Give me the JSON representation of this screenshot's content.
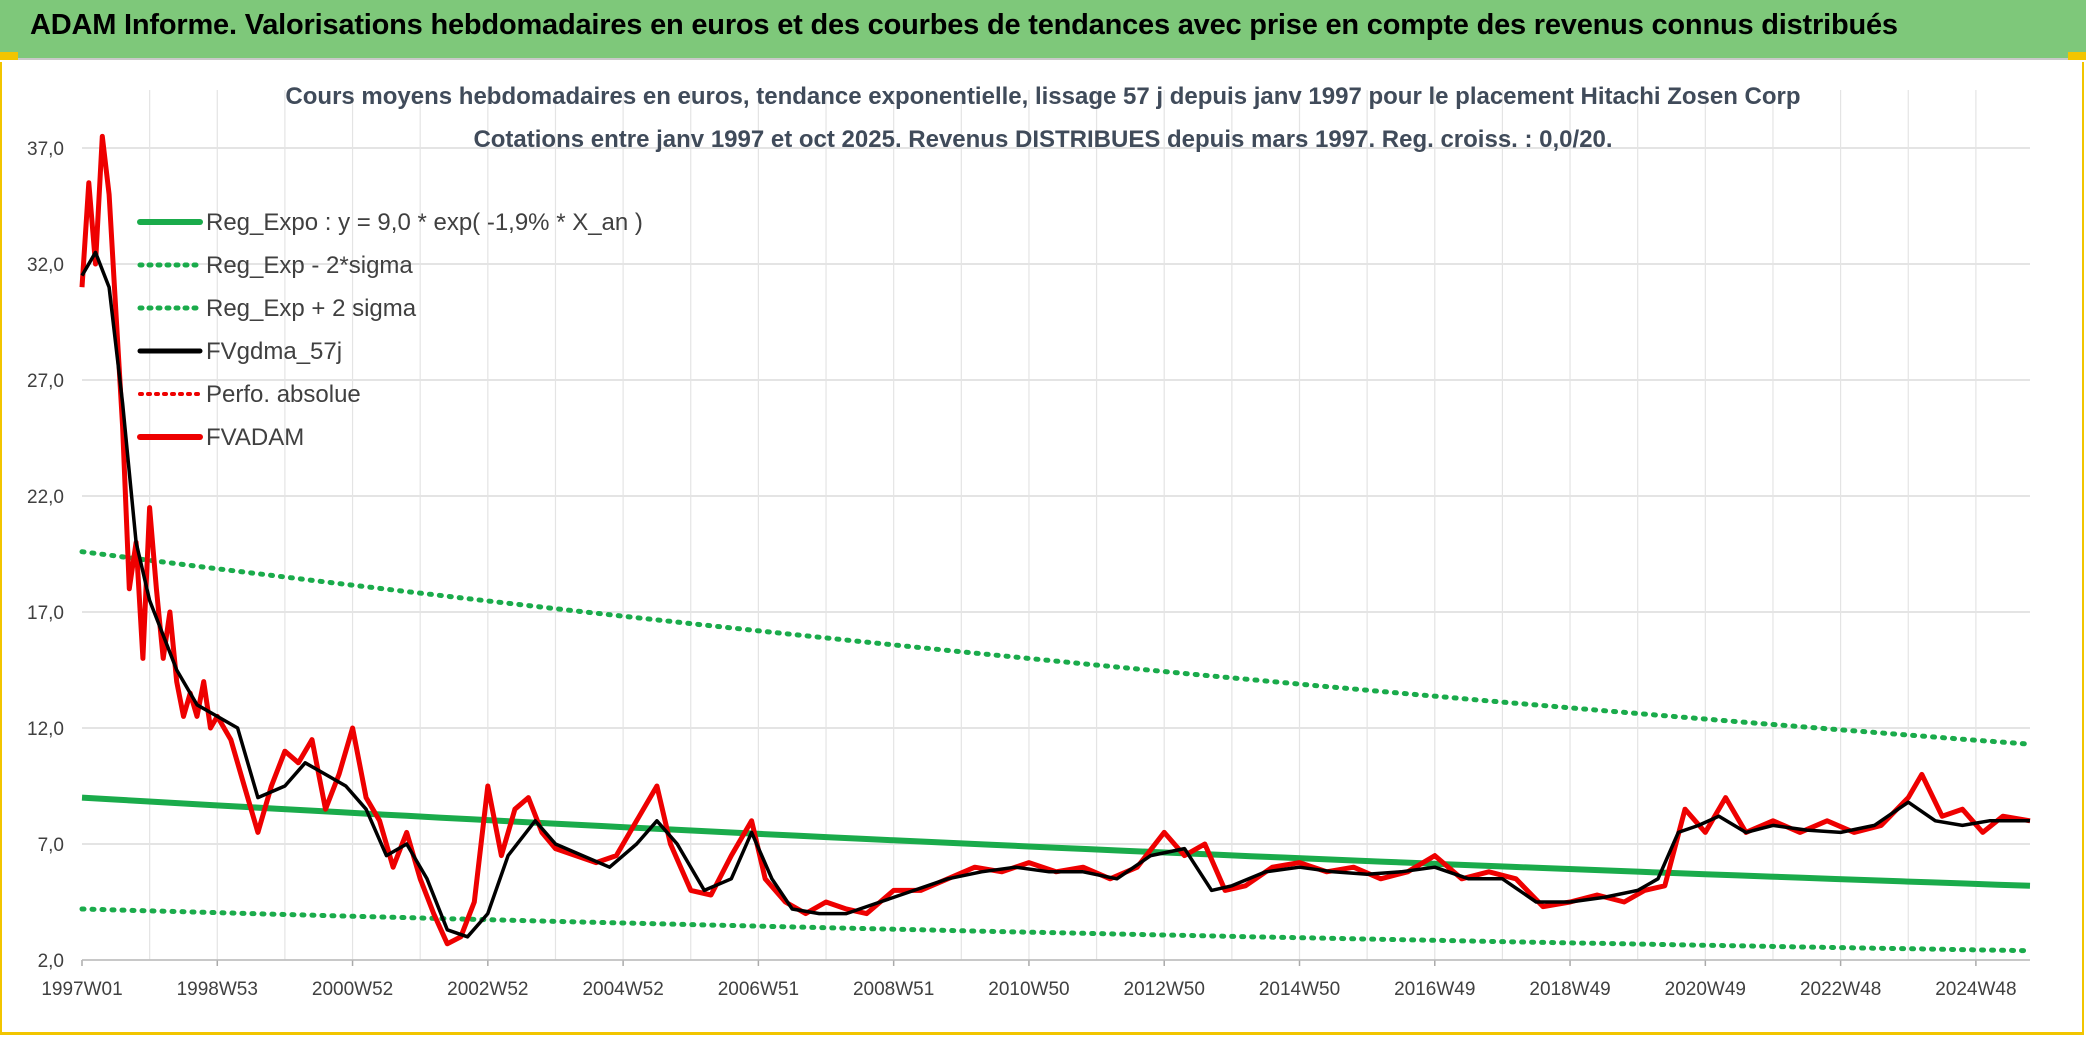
{
  "banner": {
    "title": "ADAM Informe. Valorisations hebdomadaires en euros et des courbes de tendances avec prise en compte des revenus connus distribués"
  },
  "colors": {
    "banner_bg": "#7ec87a",
    "regression": "#1aab4b",
    "fvgdma": "#000000",
    "fvadam": "#ee0000",
    "perfo": "#ee0000",
    "accent_border": "#f2c500"
  },
  "chart_data": {
    "type": "line",
    "title": "Cours moyens hebdomadaires en euros, tendance exponentielle, lissage 57 j depuis janv 1997 pour le placement Hitachi Zosen Corp",
    "subtitle": "Cotations entre janv 1997 et oct 2025. Revenus DISTRIBUES depuis mars 1997. Reg. croiss. : 0,0/20.",
    "xlabel": "",
    "ylabel": "",
    "x_range": [
      1997.0,
      2025.8
    ],
    "ylim": [
      2.0,
      39.5
    ],
    "y_ticks": [
      2.0,
      7.0,
      12.0,
      17.0,
      22.0,
      27.0,
      32.0,
      37.0
    ],
    "y_tick_labels": [
      "2,0",
      "7,0",
      "12,0",
      "17,0",
      "22,0",
      "27,0",
      "32,0",
      "37,0"
    ],
    "x_ticks": [
      1997.0,
      1999.0,
      2001.0,
      2003.0,
      2005.0,
      2007.0,
      2009.0,
      2011.0,
      2013.0,
      2015.0,
      2017.0,
      2019.0,
      2021.0,
      2023.0,
      2025.0
    ],
    "x_tick_labels": [
      "1997W01",
      "1998W53",
      "2000W52",
      "2002W52",
      "2004W52",
      "2006W51",
      "2008W51",
      "2010W50",
      "2012W50",
      "2014W50",
      "2016W49",
      "2018W49",
      "2020W49",
      "2022W48",
      "2024W48"
    ],
    "grid": true,
    "legend_position": "top-left",
    "legend": [
      {
        "label": "Reg_Expo : y = 9,0 * exp( -1,9% *  X_an )",
        "style": "solid-green"
      },
      {
        "label": "Reg_Exp - 2*sigma",
        "style": "dotted-green"
      },
      {
        "label": "Reg_Exp + 2 sigma",
        "style": "dotted-green"
      },
      {
        "label": "FVgdma_57j",
        "style": "solid-black"
      },
      {
        "label": "Perfo. absolue",
        "style": "dotted-red"
      },
      {
        "label": "FVADAM",
        "style": "solid-red"
      }
    ],
    "series": [
      {
        "name": "Reg_Expo",
        "x": [
          1997.0,
          2025.8
        ],
        "values": [
          9.0,
          5.2
        ]
      },
      {
        "name": "Reg_Exp - 2*sigma",
        "x": [
          1997.0,
          2025.8
        ],
        "values": [
          4.2,
          2.4
        ]
      },
      {
        "name": "Reg_Exp + 2 sigma",
        "x": [
          1997.0,
          2025.8
        ],
        "values": [
          19.6,
          11.3
        ]
      },
      {
        "name": "FVgdma_57j",
        "x": [
          1997.0,
          1997.2,
          1997.4,
          1997.6,
          1997.8,
          1998.0,
          1998.2,
          1998.4,
          1998.7,
          1999.0,
          1999.3,
          1999.6,
          2000.0,
          2000.3,
          2000.6,
          2000.9,
          2001.2,
          2001.5,
          2001.8,
          2002.1,
          2002.4,
          2002.7,
          2003.0,
          2003.3,
          2003.7,
          2004.0,
          2004.4,
          2004.8,
          2005.2,
          2005.5,
          2005.8,
          2006.2,
          2006.6,
          2006.9,
          2007.2,
          2007.5,
          2007.9,
          2008.3,
          2008.8,
          2009.3,
          2009.8,
          2010.3,
          2010.8,
          2011.3,
          2011.8,
          2012.3,
          2012.8,
          2013.3,
          2013.7,
          2014.0,
          2014.5,
          2015.0,
          2015.5,
          2016.0,
          2016.5,
          2017.0,
          2017.5,
          2018.0,
          2018.5,
          2019.0,
          2019.5,
          2020.0,
          2020.3,
          2020.6,
          2020.9,
          2021.2,
          2021.6,
          2022.0,
          2022.5,
          2023.0,
          2023.5,
          2024.0,
          2024.4,
          2024.8,
          2025.2,
          2025.8
        ],
        "values": [
          31.5,
          32.5,
          31.0,
          26.0,
          20.0,
          17.5,
          16.0,
          14.5,
          13.0,
          12.5,
          12.0,
          9.0,
          9.5,
          10.5,
          10.0,
          9.5,
          8.5,
          6.5,
          7.0,
          5.5,
          3.3,
          3.0,
          4.0,
          6.5,
          8.0,
          7.0,
          6.5,
          6.0,
          7.0,
          8.0,
          7.0,
          5.0,
          5.5,
          7.5,
          5.5,
          4.2,
          4.0,
          4.0,
          4.5,
          5.0,
          5.5,
          5.8,
          6.0,
          5.8,
          5.8,
          5.5,
          6.5,
          6.8,
          5.0,
          5.2,
          5.8,
          6.0,
          5.8,
          5.7,
          5.8,
          6.0,
          5.5,
          5.5,
          4.5,
          4.5,
          4.7,
          5.0,
          5.5,
          7.5,
          7.8,
          8.2,
          7.5,
          7.8,
          7.6,
          7.5,
          7.8,
          8.8,
          8.0,
          7.8,
          8.0,
          8.0
        ]
      },
      {
        "name": "FVADAM",
        "x": [
          1997.0,
          1997.1,
          1997.2,
          1997.3,
          1997.4,
          1997.5,
          1997.6,
          1997.7,
          1997.8,
          1997.9,
          1998.0,
          1998.1,
          1998.2,
          1998.3,
          1998.4,
          1998.5,
          1998.6,
          1998.7,
          1998.8,
          1998.9,
          1999.0,
          1999.2,
          1999.4,
          1999.6,
          1999.8,
          2000.0,
          2000.2,
          2000.4,
          2000.6,
          2000.8,
          2001.0,
          2001.2,
          2001.4,
          2001.6,
          2001.8,
          2002.0,
          2002.2,
          2002.4,
          2002.6,
          2002.8,
          2003.0,
          2003.2,
          2003.4,
          2003.6,
          2003.8,
          2004.0,
          2004.3,
          2004.6,
          2004.9,
          2005.2,
          2005.5,
          2005.7,
          2006.0,
          2006.3,
          2006.6,
          2006.9,
          2007.1,
          2007.4,
          2007.7,
          2008.0,
          2008.3,
          2008.6,
          2009.0,
          2009.4,
          2009.8,
          2010.2,
          2010.6,
          2011.0,
          2011.4,
          2011.8,
          2012.2,
          2012.6,
          2013.0,
          2013.3,
          2013.6,
          2013.9,
          2014.2,
          2014.6,
          2015.0,
          2015.4,
          2015.8,
          2016.2,
          2016.6,
          2017.0,
          2017.4,
          2017.8,
          2018.2,
          2018.6,
          2019.0,
          2019.4,
          2019.8,
          2020.1,
          2020.4,
          2020.7,
          2021.0,
          2021.3,
          2021.6,
          2022.0,
          2022.4,
          2022.8,
          2023.2,
          2023.6,
          2024.0,
          2024.2,
          2024.5,
          2024.8,
          2025.1,
          2025.4,
          2025.8
        ],
        "values": [
          31.0,
          35.5,
          32.0,
          37.5,
          35.0,
          30.0,
          25.0,
          18.0,
          20.0,
          15.0,
          21.5,
          18.0,
          15.0,
          17.0,
          14.0,
          12.5,
          13.5,
          12.5,
          14.0,
          12.0,
          12.5,
          11.5,
          9.5,
          7.5,
          9.5,
          11.0,
          10.5,
          11.5,
          8.5,
          10.0,
          12.0,
          9.0,
          8.0,
          6.0,
          7.5,
          5.5,
          4.0,
          2.7,
          3.0,
          4.5,
          9.5,
          6.5,
          8.5,
          9.0,
          7.5,
          6.8,
          6.5,
          6.2,
          6.5,
          8.0,
          9.5,
          7.0,
          5.0,
          4.8,
          6.5,
          8.0,
          5.5,
          4.5,
          4.0,
          4.5,
          4.2,
          4.0,
          5.0,
          5.0,
          5.5,
          6.0,
          5.8,
          6.2,
          5.8,
          6.0,
          5.5,
          6.0,
          7.5,
          6.5,
          7.0,
          5.0,
          5.2,
          6.0,
          6.2,
          5.8,
          6.0,
          5.5,
          5.8,
          6.5,
          5.5,
          5.8,
          5.5,
          4.3,
          4.5,
          4.8,
          4.5,
          5.0,
          5.2,
          8.5,
          7.5,
          9.0,
          7.5,
          8.0,
          7.5,
          8.0,
          7.5,
          7.8,
          9.0,
          10.0,
          8.2,
          8.5,
          7.5,
          8.2,
          8.0
        ]
      }
    ]
  }
}
